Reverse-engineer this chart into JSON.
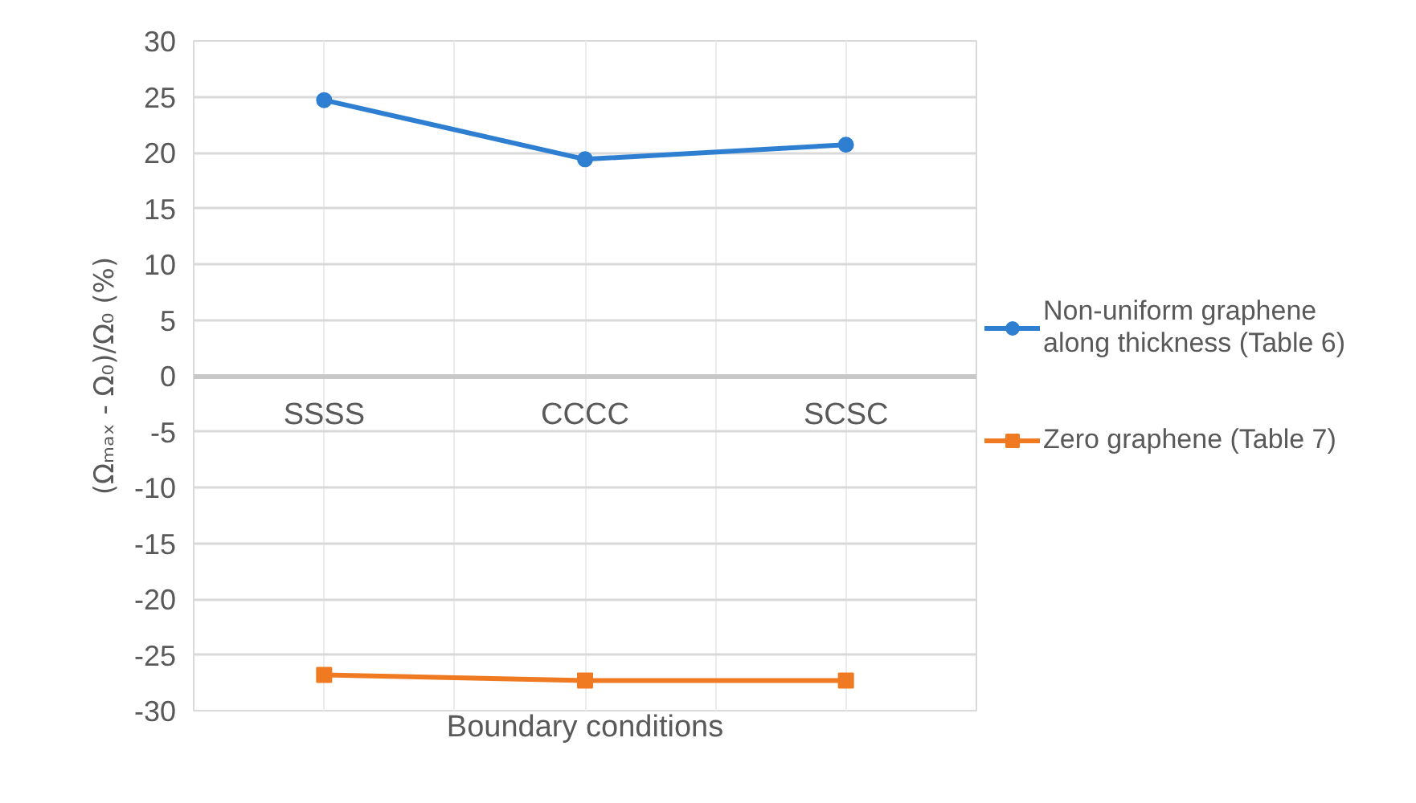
{
  "chart_data": {
    "type": "line",
    "xlabel": "Boundary conditions",
    "ylabel": "(Ωₘₐₓ - Ω₀)/Ω₀ (%)",
    "categories": [
      "SSSS",
      "CCCC",
      "SCSC"
    ],
    "series": [
      {
        "name": "Non-uniform graphene along thickness (Table 6)",
        "color": "#2e7fd1",
        "marker": "circle",
        "values": [
          24.7,
          19.4,
          20.7
        ]
      },
      {
        "name": "Zero graphene (Table 7)",
        "color": "#f07a22",
        "marker": "square",
        "values": [
          -26.8,
          -27.3,
          -27.3
        ]
      }
    ],
    "ylim": [
      -30,
      30
    ],
    "yticks": [
      -30,
      -25,
      -20,
      -15,
      -10,
      -5,
      0,
      5,
      10,
      15,
      20,
      25,
      30
    ],
    "grid": true,
    "legend": "right"
  }
}
